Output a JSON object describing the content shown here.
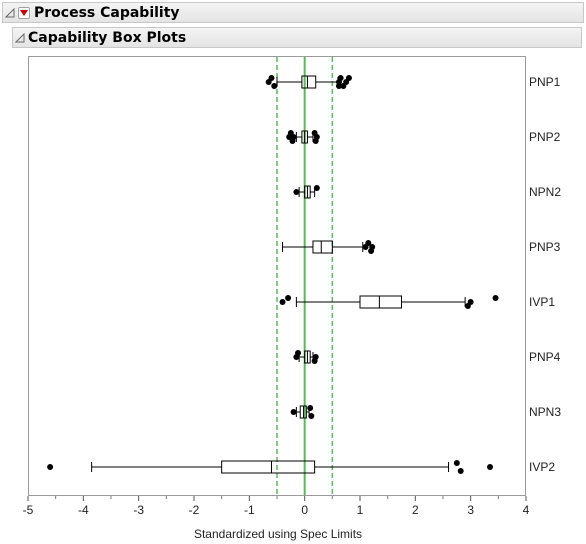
{
  "outline": {
    "process_capability_title": "Process Capability",
    "box_plots_title": "Capability Box Plots"
  },
  "colors": {
    "spec_line": "#5cb85c",
    "spec_limit_line": "#5cb85c",
    "box_stroke": "#000000",
    "menu_arrow": "#cc0000"
  },
  "chart_data": {
    "type": "box",
    "xlabel": "Standardized using Spec Limits",
    "xlim": [
      -5,
      4
    ],
    "xticks": [
      -5,
      -4,
      -3,
      -2,
      -1,
      0,
      1,
      2,
      3,
      4
    ],
    "reference_lines": {
      "target": 0,
      "lower_limit": -0.5,
      "upper_limit": 0.5
    },
    "series": [
      {
        "name": "PNP1",
        "whisker_low": -0.5,
        "q1": -0.05,
        "median": 0.05,
        "q3": 0.2,
        "whisker_high": 0.6,
        "outliers": [
          -0.65,
          -0.6,
          -0.55,
          0.62,
          0.65,
          0.7,
          0.75,
          0.8,
          0.62
        ]
      },
      {
        "name": "PNP2",
        "whisker_low": -0.15,
        "q1": -0.05,
        "median": 0.0,
        "q3": 0.05,
        "whisker_high": 0.15,
        "outliers": [
          -0.28,
          -0.25,
          -0.22,
          -0.2,
          0.18,
          0.2,
          0.22
        ]
      },
      {
        "name": "NPN2",
        "whisker_low": -0.1,
        "q1": 0.0,
        "median": 0.05,
        "q3": 0.1,
        "whisker_high": 0.18,
        "outliers": [
          -0.15,
          0.22
        ]
      },
      {
        "name": "PNP3",
        "whisker_low": -0.4,
        "q1": 0.15,
        "median": 0.3,
        "q3": 0.5,
        "whisker_high": 1.05,
        "outliers": [
          1.1,
          1.15,
          1.2,
          1.22
        ]
      },
      {
        "name": "IVP1",
        "whisker_low": -0.15,
        "q1": 1.0,
        "median": 1.35,
        "q3": 1.75,
        "whisker_high": 2.9,
        "outliers": [
          -0.4,
          -0.3,
          2.95,
          3.0,
          3.45
        ]
      },
      {
        "name": "PNP4",
        "whisker_low": -0.1,
        "q1": 0.0,
        "median": 0.05,
        "q3": 0.1,
        "whisker_high": 0.15,
        "outliers": [
          -0.15,
          -0.12,
          0.18,
          0.2
        ]
      },
      {
        "name": "NPN3",
        "whisker_low": -0.15,
        "q1": -0.08,
        "median": -0.02,
        "q3": 0.03,
        "whisker_high": 0.08,
        "outliers": [
          -0.2,
          0.1,
          0.12
        ]
      },
      {
        "name": "IVP2",
        "whisker_low": -3.85,
        "q1": -1.5,
        "median": -0.6,
        "q3": 0.18,
        "whisker_high": 2.6,
        "outliers": [
          -4.6,
          2.75,
          2.82,
          3.35
        ]
      }
    ]
  }
}
